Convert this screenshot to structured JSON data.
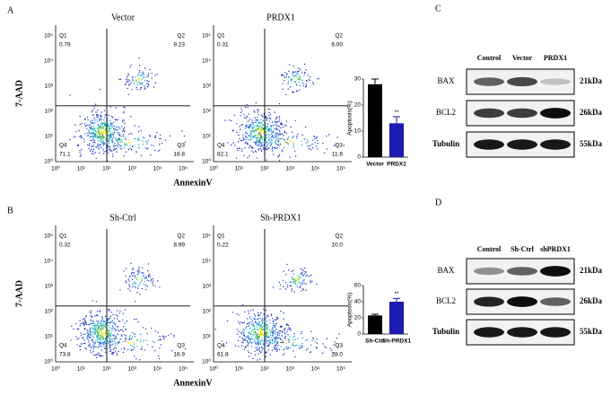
{
  "figure": {
    "log_ticks": [
      "10⁰",
      "10¹",
      "10²",
      "10³",
      "10⁴",
      "10⁵"
    ],
    "panels": [
      {
        "label": "A",
        "y_axis_label": "7-AAD",
        "x_axis_label": "AnnexinV",
        "plots": [
          {
            "title": "Vector",
            "quadrants": [
              {
                "name": "Q1",
                "value": "0.79"
              },
              {
                "name": "Q2",
                "value": "9.23"
              },
              {
                "name": "Q4",
                "value": "71.1"
              },
              {
                "name": "Q3",
                "value": "18.8"
              }
            ]
          },
          {
            "title": "PRDX1",
            "quadrants": [
              {
                "name": "Q1",
                "value": "0.31"
              },
              {
                "name": "Q2",
                "value": "6.00"
              },
              {
                "name": "Q4",
                "value": "82.1"
              },
              {
                "name": "Q3",
                "value": "11.6"
              }
            ]
          }
        ],
        "chart": {
          "type": "bar",
          "y_label": "Apoptosis(%)",
          "categories": [
            "Vector",
            "PRDX1"
          ],
          "values": [
            28,
            13
          ],
          "errors": [
            2,
            2.5
          ],
          "colors": [
            "#000000",
            "#1c1cb0"
          ],
          "ylim": [
            0,
            30
          ],
          "yticks": [
            0,
            10,
            20,
            30
          ],
          "significance_label": "**"
        }
      },
      {
        "label": "B",
        "y_axis_label": "7-AAD",
        "x_axis_label": "AnnexinV",
        "plots": [
          {
            "title": "Sh-Ctrl",
            "quadrants": [
              {
                "name": "Q1",
                "value": "0.32"
              },
              {
                "name": "Q2",
                "value": "8.99"
              },
              {
                "name": "Q4",
                "value": "73.8"
              },
              {
                "name": "Q3",
                "value": "16.9"
              }
            ]
          },
          {
            "title": "Sh-PRDX1",
            "quadrants": [
              {
                "name": "Q1",
                "value": "0.22"
              },
              {
                "name": "Q2",
                "value": "10.0"
              },
              {
                "name": "Q4",
                "value": "61.8"
              },
              {
                "name": "Q3",
                "value": "28.0"
              }
            ]
          }
        ],
        "chart": {
          "type": "bar",
          "y_label": "Apoptosis(%)",
          "categories": [
            "Sh-Ctrl",
            "Sh-PRDX1"
          ],
          "values": [
            23,
            40
          ],
          "errors": [
            1.5,
            4
          ],
          "colors": [
            "#000000",
            "#1c1cb0"
          ],
          "ylim": [
            0,
            60
          ],
          "yticks": [
            0,
            20,
            40,
            60
          ],
          "significance_label": "**"
        }
      }
    ],
    "blots": [
      {
        "label": "C",
        "lanes": [
          "Control",
          "Vector",
          "PRDX1"
        ],
        "rows": [
          {
            "protein": "BAX",
            "size": "21kDa"
          },
          {
            "protein": "BCL2",
            "size": "26kDa"
          },
          {
            "protein": "Tubulin",
            "size": "55kDa"
          }
        ]
      },
      {
        "label": "D",
        "lanes": [
          "Control",
          "Sh-Ctrl",
          "shPRDX1"
        ],
        "rows": [
          {
            "protein": "BAX",
            "size": "21kDa"
          },
          {
            "protein": "BCL2",
            "size": "26kDa"
          },
          {
            "protein": "Tubulin",
            "size": "55kDa"
          }
        ]
      }
    ]
  }
}
